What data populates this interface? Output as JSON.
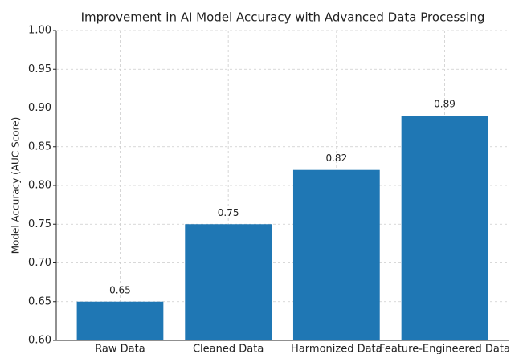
{
  "chart_data": {
    "type": "bar",
    "title": "Improvement in AI Model Accuracy with Advanced Data Processing",
    "y_label": "Model Accuracy (AUC Score)",
    "categories": [
      "Raw Data",
      "Cleaned Data",
      "Harmonized Data",
      "Feature-Engineered Data"
    ],
    "values": [
      0.65,
      0.75,
      0.82,
      0.89
    ],
    "color": "#1f77b4",
    "ylim": [
      0.6,
      1.0
    ],
    "yticks": [
      {
        "value": 0.6,
        "label": "0.60"
      },
      {
        "value": 0.65,
        "label": "0.65"
      },
      {
        "value": 0.7,
        "label": "0.70"
      },
      {
        "value": 0.75,
        "label": "0.75"
      },
      {
        "value": 0.8,
        "label": "0.80"
      },
      {
        "value": 0.85,
        "label": "0.85"
      },
      {
        "value": 0.9,
        "label": "0.90"
      },
      {
        "value": 0.95,
        "label": "0.95"
      },
      {
        "value": 1.0,
        "label": "1.00"
      }
    ],
    "grid": true
  }
}
